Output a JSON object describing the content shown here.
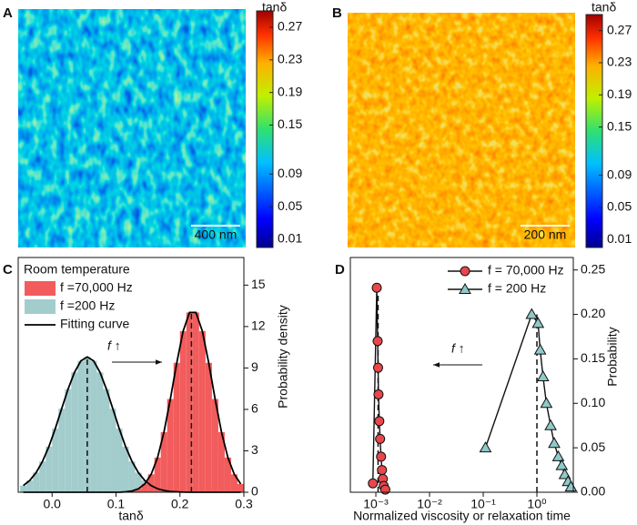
{
  "chart_data": [
    {
      "type": "heatmap",
      "label": "A",
      "colorbar_label": "tanδ",
      "clim": [
        0,
        0.29
      ],
      "cticks": [
        0.01,
        0.05,
        0.09,
        0.15,
        0.19,
        0.23,
        0.27
      ],
      "scale_bar": "400 nm"
    },
    {
      "type": "heatmap",
      "label": "B",
      "colorbar_label": "tanδ",
      "clim": [
        0,
        0.29
      ],
      "cticks": [
        0.01,
        0.05,
        0.09,
        0.15,
        0.19,
        0.23,
        0.27
      ],
      "scale_bar": "200 nm"
    },
    {
      "type": "histogram",
      "label": "C",
      "legend_title": "Room temperature",
      "xlabel": "tanδ",
      "ylabel": "Probability density",
      "bins": [
        -0.05,
        -0.04,
        -0.03,
        -0.02,
        -0.01,
        0,
        0.01,
        0.02,
        0.03,
        0.04,
        0.05,
        0.06,
        0.07,
        0.08,
        0.09,
        0.1,
        0.11,
        0.12,
        0.13,
        0.14,
        0.15,
        0.16,
        0.17,
        0.18,
        0.19,
        0.2,
        0.21,
        0.22,
        0.23,
        0.24,
        0.25,
        0.26,
        0.27,
        0.28,
        0.29,
        0.3
      ],
      "series": [
        {
          "name": "f =70,000 Hz",
          "color": "#f25c5c",
          "peak": 0.218,
          "values": [
            0,
            0,
            0,
            0,
            0,
            0,
            0,
            0,
            0,
            0,
            0,
            0,
            0,
            0,
            0,
            0,
            0.03,
            0.09,
            0.25,
            0.6,
            1.3,
            2.51,
            4.35,
            6.75,
            9.37,
            11.67,
            13.02,
            13.02,
            11.67,
            9.37,
            6.75,
            4.35,
            2.51,
            1.3,
            0.6
          ]
        },
        {
          "name": "f =200 Hz",
          "color": "#a3cccc",
          "peak": 0.055,
          "values": [
            0.48,
            0.85,
            1.42,
            2.23,
            3.3,
            4.61,
            6.05,
            7.47,
            8.68,
            9.51,
            9.8,
            9.51,
            8.68,
            7.47,
            6.05,
            4.61,
            3.3,
            2.23,
            1.42,
            0.85,
            0.48,
            0.25,
            0.13,
            0.06,
            0.03,
            0.01,
            0,
            0,
            0,
            0,
            0,
            0,
            0,
            0,
            0
          ]
        }
      ],
      "fit_name": "Fitting curve",
      "fit_color": "#000000",
      "annotation": "f ↑",
      "xlim": [
        -0.053,
        0.3
      ],
      "xticks": [
        {
          "value": 0,
          "label": "0.0"
        },
        0.1,
        0.2,
        0.3
      ],
      "ylim": [
        0,
        17
      ],
      "yticks": [
        0,
        3,
        6,
        9,
        12,
        15
      ]
    },
    {
      "type": "line",
      "label": "D",
      "xlabel": "Normalized viscosity or relaxation time",
      "ylabel": "Probability",
      "annotation": "f ↑",
      "xlog": true,
      "series": [
        {
          "name": "f = 70,000 Hz",
          "color": "#e8474c",
          "marker": "circle",
          "peak": 0.0011,
          "x": [
            0.00088,
            0.00104,
            0.00108,
            0.0011,
            0.00112,
            0.00116,
            0.0012,
            0.00125,
            0.0013,
            0.00135,
            0.0014,
            0.0015
          ],
          "values": [
            0.01,
            0.23,
            0.17,
            0.14,
            0.11,
            0.08,
            0.06,
            0.04,
            0.025,
            0.015,
            0.007,
            0.003
          ]
        },
        {
          "name": "f = 200 Hz",
          "color": "#8fc9c9",
          "marker": "triangle",
          "peak": 1.0,
          "x": [
            0.11,
            0.8,
            1.05,
            1.15,
            1.3,
            1.5,
            1.8,
            2.1,
            2.5,
            2.9,
            3.3,
            3.8,
            4.3
          ],
          "values": [
            0.05,
            0.2,
            0.19,
            0.16,
            0.13,
            0.1,
            0.075,
            0.055,
            0.04,
            0.03,
            0.02,
            0.012,
            0.006
          ]
        }
      ],
      "xlim": [
        0.000335,
        4.76
      ],
      "xticks": [
        {
          "value": 0.001,
          "label": "10⁻³"
        },
        {
          "value": 0.01,
          "label": "10⁻²"
        },
        {
          "value": 0.1,
          "label": "10⁻¹"
        },
        {
          "value": 1,
          "label": "10⁰"
        }
      ],
      "ylim": [
        0,
        0.264
      ],
      "yticks": [
        {
          "value": 0,
          "label": "0.00"
        },
        0.05,
        {
          "value": 0.1,
          "label": "0.10"
        },
        0.15,
        {
          "value": 0.2,
          "label": "0.20"
        },
        0.25
      ]
    }
  ]
}
